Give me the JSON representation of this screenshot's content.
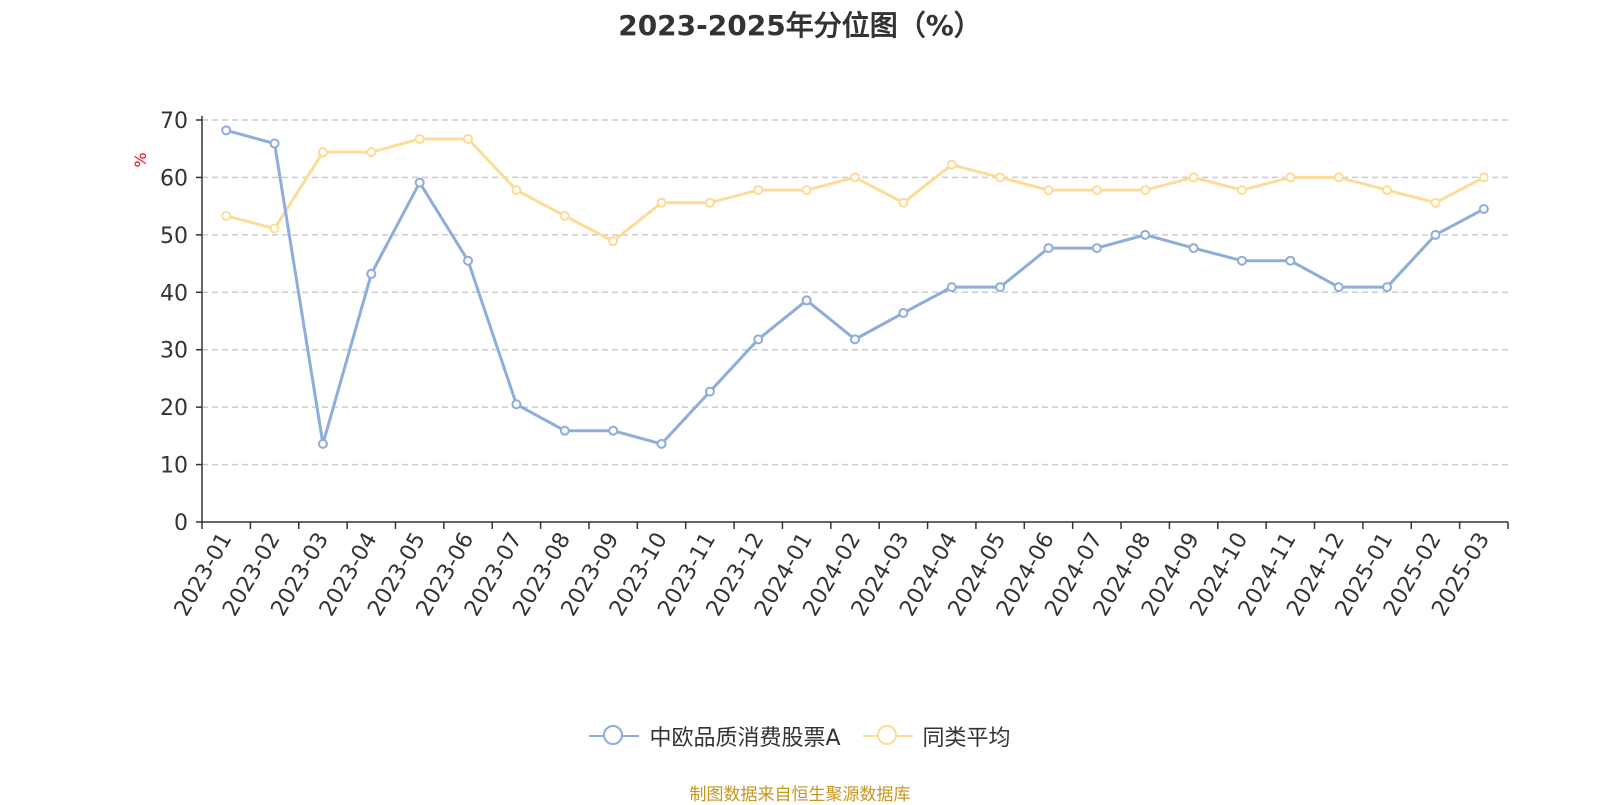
{
  "chart_data": {
    "type": "line",
    "title": "2023-2025年分位图（%）",
    "ylabel": "%",
    "ylim": [
      0,
      70
    ],
    "yticks": [
      0,
      10,
      20,
      30,
      40,
      50,
      60,
      70
    ],
    "grid": true,
    "legend_position": "bottom",
    "categories": [
      "2023-01",
      "2023-02",
      "2023-03",
      "2023-04",
      "2023-05",
      "2023-06",
      "2023-07",
      "2023-08",
      "2023-09",
      "2023-10",
      "2023-11",
      "2023-12",
      "2024-01",
      "2024-02",
      "2024-03",
      "2024-04",
      "2024-05",
      "2024-06",
      "2024-07",
      "2024-08",
      "2024-09",
      "2024-10",
      "2024-11",
      "2024-12",
      "2025-01",
      "2025-02",
      "2025-03"
    ],
    "series": [
      {
        "name": "中欧品质消费股票A",
        "color": "#8eadda",
        "values": [
          68.2,
          65.9,
          13.6,
          43.2,
          59.1,
          45.5,
          20.5,
          15.9,
          15.9,
          13.6,
          22.7,
          31.8,
          38.6,
          31.8,
          36.4,
          40.9,
          40.9,
          47.7,
          47.7,
          50.0,
          47.7,
          45.5,
          45.5,
          40.9,
          40.9,
          50.0,
          54.5
        ]
      },
      {
        "name": "同类平均",
        "color": "#fcdc97",
        "values": [
          53.3,
          51.1,
          64.4,
          64.4,
          66.7,
          66.7,
          57.8,
          53.3,
          48.9,
          55.6,
          55.6,
          57.8,
          57.8,
          60.0,
          55.6,
          62.2,
          60.0,
          57.8,
          57.8,
          57.8,
          60.0,
          57.8,
          60.0,
          60.0,
          57.8,
          55.6,
          60.0
        ]
      }
    ]
  },
  "source_text": "制图数据来自恒生聚源数据库",
  "colors": {
    "axis": "#333333",
    "grid": "#cccccc",
    "ylabel": "#ff0000",
    "source": "#c8961e"
  }
}
